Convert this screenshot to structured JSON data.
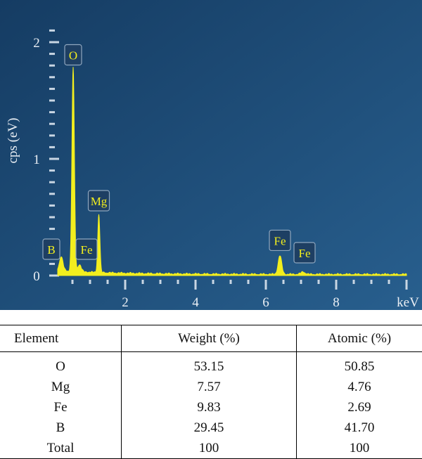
{
  "chart_data": {
    "type": "line",
    "ylabel": "cps (eV)",
    "xlabel": "keV",
    "xlim": [
      0,
      10
    ],
    "ylim": [
      0,
      2
    ],
    "x_ticks": [
      2,
      4,
      6,
      8
    ],
    "y_ticks": [
      0,
      1,
      2
    ],
    "peaks": [
      {
        "element": "B",
        "kev": 0.18,
        "cps": 0.12
      },
      {
        "element": "O",
        "kev": 0.52,
        "cps": 1.75
      },
      {
        "element": "Fe",
        "kev": 0.7,
        "cps": 0.06
      },
      {
        "element": "Mg",
        "kev": 1.25,
        "cps": 0.5
      },
      {
        "element": "Fe",
        "kev": 6.4,
        "cps": 0.16
      },
      {
        "element": "Fe",
        "kev": 7.06,
        "cps": 0.02
      }
    ],
    "colors": {
      "background": "#1d4a77",
      "trace": "#f2ee1e",
      "tick": "#c9d6e3",
      "label_box": "#1e3f63"
    }
  },
  "table": {
    "headers": [
      "Element",
      "Weight (%)",
      "Atomic (%)"
    ],
    "rows": [
      [
        "O",
        "53.15",
        "50.85"
      ],
      [
        "Mg",
        "7.57",
        "4.76"
      ],
      [
        "Fe",
        "9.83",
        "2.69"
      ],
      [
        "B",
        "29.45",
        "41.70"
      ],
      [
        "Total",
        "100",
        "100"
      ]
    ]
  }
}
